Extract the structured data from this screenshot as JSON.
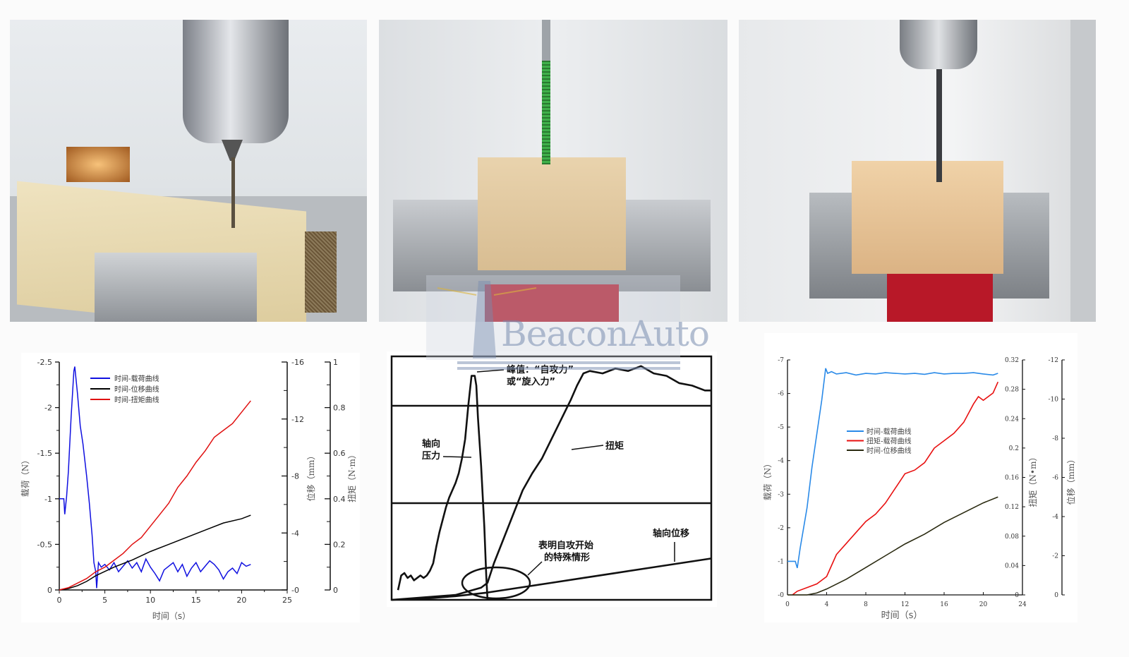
{
  "watermark": {
    "logo_text": "BeaconAuto",
    "color": "#8a9cc0"
  },
  "photos": [
    {
      "subject": "drill-chuck-drilling-foam-block"
    },
    {
      "subject": "green-screw-in-foam-block-vise"
    },
    {
      "subject": "screwdriver-bit-into-foam-block-vise"
    }
  ],
  "chart_data": [
    {
      "type": "line",
      "xlabel": "时间（s）",
      "ylabel": "载荷（N）",
      "y2label": "位移（mm）",
      "y3label": "扭矩（N·m）",
      "xlim": [
        0,
        25
      ],
      "ylim": [
        0,
        -2.5
      ],
      "y2lim": [
        0,
        -16
      ],
      "y3lim": [
        0,
        1
      ],
      "xticks": [
        "0",
        "5",
        "10",
        "15",
        "20",
        "25"
      ],
      "yticks": [
        "0",
        "-0.5",
        "-1",
        "-1.5",
        "-2",
        "-2.5"
      ],
      "y2ticks": [
        "-0",
        "-4",
        "-8",
        "-12",
        "-16"
      ],
      "y3ticks": [
        "0",
        "0.2",
        "0.4",
        "0.6",
        "0.8",
        "1"
      ],
      "legend_placement": "top-center",
      "series": [
        {
          "name": "时间-载荷曲线",
          "axis": "y",
          "color": "#1010e0",
          "x": [
            0,
            0.5,
            0.6,
            0.8,
            1.0,
            1.3,
            1.6,
            1.7,
            2.0,
            2.3,
            2.6,
            3.0,
            3.3,
            3.6,
            3.8,
            4.0,
            4.1,
            4.3,
            4.6,
            5,
            5.5,
            6,
            6.5,
            7,
            7.5,
            8,
            8.5,
            9,
            9.5,
            10,
            10.5,
            11,
            11.5,
            12,
            12.5,
            13,
            13.5,
            14,
            14.5,
            15,
            15.5,
            16,
            16.5,
            17,
            17.5,
            18,
            18.5,
            19,
            19.5,
            20,
            20.5,
            21
          ],
          "y": [
            -1,
            -1,
            -0.83,
            -1.02,
            -1.3,
            -1.9,
            -2.4,
            -2.45,
            -2.15,
            -1.8,
            -1.6,
            -1.25,
            -0.95,
            -0.6,
            -0.3,
            -0.2,
            -0.02,
            -0.3,
            -0.25,
            -0.28,
            -0.22,
            -0.3,
            -0.2,
            -0.26,
            -0.32,
            -0.24,
            -0.3,
            -0.2,
            -0.34,
            -0.25,
            -0.18,
            -0.1,
            -0.22,
            -0.26,
            -0.3,
            -0.2,
            -0.28,
            -0.15,
            -0.24,
            -0.3,
            -0.2,
            -0.26,
            -0.32,
            -0.28,
            -0.22,
            -0.12,
            -0.2,
            -0.24,
            -0.18,
            -0.3,
            -0.26,
            -0.28
          ]
        },
        {
          "name": "时间-位移曲线",
          "axis": "y2",
          "color": "#000000",
          "x": [
            0,
            1,
            2,
            3,
            4,
            6,
            8,
            10,
            12,
            14,
            16,
            18,
            20,
            21
          ],
          "y": [
            0,
            -0.1,
            -0.3,
            -0.6,
            -1.0,
            -1.6,
            -2.1,
            -2.7,
            -3.2,
            -3.7,
            -4.2,
            -4.7,
            -5.0,
            -5.25
          ]
        },
        {
          "name": "时间-扭矩曲线",
          "axis": "y3",
          "color": "#e01010",
          "x": [
            0,
            1,
            2,
            3,
            4,
            5,
            6,
            7,
            8,
            9,
            10,
            11,
            12,
            13,
            14,
            15,
            16,
            17,
            18,
            19,
            20,
            21
          ],
          "y": [
            0,
            0.01,
            0.03,
            0.05,
            0.08,
            0.1,
            0.13,
            0.16,
            0.2,
            0.23,
            0.28,
            0.33,
            0.38,
            0.45,
            0.5,
            0.56,
            0.61,
            0.67,
            0.7,
            0.73,
            0.78,
            0.83
          ]
        }
      ]
    },
    {
      "type": "line",
      "annotations": [
        "峰值：“自攻力”",
        "或“旋入力”",
        "轴向",
        "压力",
        "扭矩",
        "表明自攻开始",
        "的特殊情形",
        "轴向位移"
      ],
      "grid": true,
      "series": [
        {
          "name": "轴向压力",
          "x": [
            2,
            3,
            4,
            5,
            6,
            7,
            8,
            9,
            10,
            11,
            12,
            13,
            14,
            15,
            16,
            17,
            18,
            19,
            20,
            21,
            22,
            23,
            24,
            25,
            26,
            26.5,
            27,
            28,
            29,
            29.6,
            30
          ],
          "y": [
            4,
            10,
            11,
            9,
            10,
            8,
            9,
            10,
            9,
            10,
            12,
            15,
            22,
            28,
            33,
            38,
            42,
            45,
            48,
            52,
            58,
            66,
            80,
            92,
            92,
            88,
            75,
            55,
            30,
            10,
            0
          ]
        },
        {
          "name": "扭矩",
          "x": [
            0,
            10,
            20,
            28,
            30,
            32,
            35,
            38,
            41,
            44,
            47,
            50,
            53,
            56,
            58,
            60,
            62,
            66,
            70,
            74,
            78,
            82,
            86,
            90,
            94,
            98,
            100
          ],
          "y": [
            0,
            1,
            2,
            5,
            7,
            15,
            25,
            35,
            45,
            52,
            58,
            66,
            74,
            82,
            88,
            93,
            94,
            93,
            95,
            94,
            96,
            93,
            92,
            89,
            88,
            86,
            86
          ]
        },
        {
          "name": "轴向位移",
          "x": [
            0,
            10,
            20,
            30,
            40,
            50,
            60,
            70,
            80,
            90,
            100
          ],
          "y": [
            0,
            0.5,
            1.5,
            3,
            5,
            7,
            9,
            11,
            13,
            15,
            17
          ]
        }
      ]
    },
    {
      "type": "line",
      "xlabel": "时间（s）",
      "ylabel": "载荷（N）",
      "y2label": "扭矩（N•m）",
      "y3label": "位移（mm）",
      "xlim": [
        0,
        24
      ],
      "ylim": [
        0,
        -7
      ],
      "y2lim": [
        0,
        0.32
      ],
      "y3lim": [
        0,
        -12
      ],
      "xticks": [
        "0",
        "4",
        "8",
        "12",
        "16",
        "20",
        "24"
      ],
      "yticks": [
        "-0",
        "-1",
        "-2",
        "-3",
        "-4",
        "-5",
        "-6",
        "-7"
      ],
      "y2ticks": [
        "0",
        "0.04",
        "0.08",
        "0.12",
        "0.16",
        "0.2",
        "0.24",
        "0.28",
        "0.32"
      ],
      "y3ticks": [
        "0",
        "-2",
        "-4",
        "-6",
        "-8",
        "-10",
        "-12"
      ],
      "legend_placement": "center",
      "series": [
        {
          "name": "时间-载荷曲线",
          "axis": "y",
          "color": "#2a8ae8",
          "x": [
            0,
            0.8,
            1,
            1.3,
            2,
            2.5,
            3,
            3.5,
            3.9,
            4.1,
            4.5,
            5,
            6,
            7,
            8,
            9,
            10,
            11,
            12,
            13,
            14,
            15,
            16,
            17,
            18,
            19,
            20,
            21,
            21.5
          ],
          "y": [
            -1,
            -1,
            -0.8,
            -1.4,
            -2.6,
            -3.8,
            -4.8,
            -5.8,
            -6.75,
            -6.6,
            -6.65,
            -6.58,
            -6.62,
            -6.55,
            -6.6,
            -6.58,
            -6.62,
            -6.6,
            -6.58,
            -6.6,
            -6.57,
            -6.62,
            -6.58,
            -6.6,
            -6.6,
            -6.62,
            -6.58,
            -6.55,
            -6.6
          ]
        },
        {
          "name": "扭矩-载荷曲线",
          "axis": "y2",
          "color": "#e81010",
          "x": [
            0.5,
            1,
            2,
            3,
            4,
            4.5,
            5,
            6,
            7,
            8,
            9,
            10,
            11,
            12,
            13,
            14,
            15,
            16,
            17,
            18,
            19,
            19.5,
            20,
            21,
            21.5
          ],
          "y": [
            0,
            0.005,
            0.01,
            0.015,
            0.025,
            0.04,
            0.055,
            0.07,
            0.085,
            0.1,
            0.11,
            0.125,
            0.145,
            0.165,
            0.17,
            0.18,
            0.2,
            0.21,
            0.22,
            0.235,
            0.26,
            0.27,
            0.265,
            0.275,
            0.29
          ]
        },
        {
          "name": "时间-位移曲线",
          "axis": "y3",
          "color": "#2a2a10",
          "x": [
            0,
            2,
            3,
            4,
            6,
            8,
            10,
            12,
            14,
            16,
            18,
            20,
            21.5
          ],
          "y": [
            0,
            0,
            -0.1,
            -0.3,
            -0.8,
            -1.4,
            -2.0,
            -2.6,
            -3.1,
            -3.7,
            -4.2,
            -4.7,
            -5.0
          ]
        }
      ]
    }
  ]
}
